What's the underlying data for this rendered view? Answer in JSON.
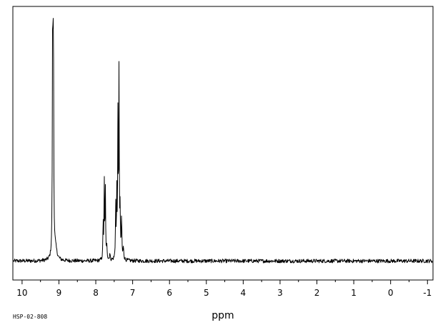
{
  "chart_data": {
    "type": "line",
    "xlabel": "ppm",
    "x_reversed": true,
    "xlim": [
      10.25,
      -1.15
    ],
    "ylim": [
      -0.08,
      1.07
    ],
    "x_major_ticks": [
      10,
      9,
      8,
      7,
      6,
      5,
      4,
      3,
      2,
      1,
      0,
      -1
    ],
    "x_tick_labels": [
      "10",
      "9",
      "8",
      "7",
      "6",
      "5",
      "4",
      "3",
      "2",
      "1",
      "0",
      "-1"
    ],
    "x_minor_step": 0.5,
    "grid": false,
    "legend": "none",
    "line_color": "#000000",
    "baseline": 0.0,
    "noise_amplitude": 0.008,
    "series": [
      {
        "peaks": [
          {
            "ppm": 9.17,
            "height": 1.0,
            "width": 0.009
          },
          {
            "ppm": 9.15,
            "height": 0.93,
            "width": 0.009
          },
          {
            "ppm": 9.1,
            "height": 0.05,
            "width": 0.05
          },
          {
            "ppm": 7.8,
            "height": 0.16,
            "width": 0.008
          },
          {
            "ppm": 7.77,
            "height": 0.33,
            "width": 0.008
          },
          {
            "ppm": 7.74,
            "height": 0.3,
            "width": 0.008
          },
          {
            "ppm": 7.7,
            "height": 0.06,
            "width": 0.01
          },
          {
            "ppm": 7.62,
            "height": 0.03,
            "width": 0.01
          },
          {
            "ppm": 7.46,
            "height": 0.23,
            "width": 0.008
          },
          {
            "ppm": 7.43,
            "height": 0.27,
            "width": 0.008
          },
          {
            "ppm": 7.4,
            "height": 0.58,
            "width": 0.008
          },
          {
            "ppm": 7.37,
            "height": 0.79,
            "width": 0.008
          },
          {
            "ppm": 7.34,
            "height": 0.2,
            "width": 0.008
          },
          {
            "ppm": 7.3,
            "height": 0.18,
            "width": 0.009
          },
          {
            "ppm": 7.25,
            "height": 0.05,
            "width": 0.012
          }
        ]
      }
    ]
  },
  "sample_code": "HSP-02-808"
}
